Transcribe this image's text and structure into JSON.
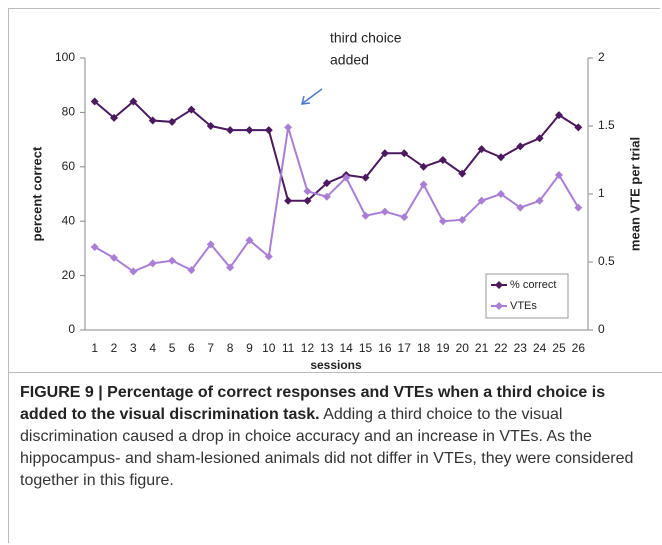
{
  "chart_data": {
    "type": "line",
    "annotation": [
      "third choice",
      "added"
    ],
    "x_label": "sessions",
    "y_label": "percent correct",
    "y2_label": "mean VTE per trial",
    "categories": [
      "1",
      "2",
      "3",
      "4",
      "5",
      "6",
      "7",
      "8",
      "9",
      "10",
      "11",
      "12",
      "13",
      "14",
      "15",
      "16",
      "17",
      "18",
      "19",
      "20",
      "21",
      "22",
      "23",
      "24",
      "25",
      "26"
    ],
    "series": [
      {
        "name": "% correct",
        "color": "#4b1a5e",
        "values": [
          84,
          78,
          84,
          77,
          76.5,
          81,
          75,
          73.5,
          73.5,
          73.5,
          47.5,
          47.5,
          54,
          57,
          56,
          65,
          65,
          60,
          62.5,
          57.5,
          66.5,
          63.5,
          67.5,
          70.5,
          79,
          74.5
        ]
      },
      {
        "name": "VTEs",
        "color": "#a97fd6",
        "axis": "y2",
        "values": [
          0.61,
          0.53,
          0.43,
          0.49,
          0.51,
          0.44,
          0.63,
          0.46,
          0.66,
          0.54,
          1.49,
          1.02,
          0.98,
          1.12,
          0.84,
          0.87,
          0.83,
          1.07,
          0.8,
          0.81,
          0.95,
          1.0,
          0.9,
          0.95,
          1.14,
          0.9
        ]
      }
    ],
    "ylim": [
      0,
      100
    ],
    "yticks": [
      0,
      20,
      40,
      60,
      80,
      100
    ],
    "y2lim": [
      0,
      2
    ],
    "y2ticks": [
      0,
      0.5,
      1,
      1.5,
      2
    ],
    "legend": "lower right"
  },
  "caption": {
    "title": "FIGURE 9 | Percentage of correct responses and VTEs when a third choice is added to the visual discrimination task.",
    "text": "Adding a third choice to the visual discrimination caused a drop in choice accuracy and an increase in VTEs. As the hippocampus- and sham-lesioned animals did not differ in VTEs, they were considered together in this figure."
  }
}
